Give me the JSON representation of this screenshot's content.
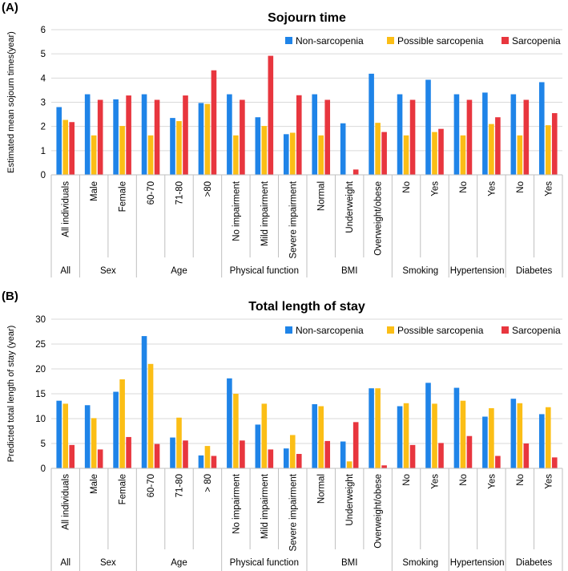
{
  "colors": {
    "non": "#1f84e8",
    "possible": "#fbbe16",
    "sarc": "#e8363e",
    "grid": "#d9d9d9",
    "axis": "#bfbfbf"
  },
  "chart_data": [
    {
      "type": "bar",
      "panel_label": "(A)",
      "title": "Sojourn time",
      "xlabel": "",
      "ylabel": "Estimated mean sojourn times(year)",
      "ylim": [
        0,
        6
      ],
      "yticks": [
        "0",
        "1",
        "2",
        "3",
        "4",
        "5",
        "6"
      ],
      "grid": true,
      "legend": "top-right",
      "categories": [
        "All individuals",
        "Male",
        "Female",
        "60-70",
        "71-80",
        ">80",
        "No impairment",
        "Mild impairment",
        "Severe impairment",
        "Normal",
        "Underweight",
        "Overweight/obese",
        "No",
        "Yes",
        "No",
        "Yes",
        "No",
        "Yes"
      ],
      "groups": [
        {
          "label": "All",
          "count": 1
        },
        {
          "label": "Sex",
          "count": 2
        },
        {
          "label": "Age",
          "count": 3
        },
        {
          "label": "Physical function",
          "count": 3
        },
        {
          "label": "BMI",
          "count": 3
        },
        {
          "label": "Smoking",
          "count": 2
        },
        {
          "label": "Hypertension",
          "count": 2
        },
        {
          "label": "Diabetes",
          "count": 2
        }
      ],
      "series": [
        {
          "name": "Non-sarcopenia",
          "values": [
            2.8,
            3.33,
            3.12,
            3.33,
            2.35,
            2.97,
            3.33,
            2.38,
            1.68,
            3.33,
            2.13,
            4.18,
            3.33,
            3.93,
            3.33,
            3.4,
            3.33,
            3.83
          ]
        },
        {
          "name": "Possible sarcopenia",
          "values": [
            2.27,
            1.63,
            2.02,
            1.63,
            2.22,
            2.93,
            1.63,
            2.02,
            1.74,
            1.63,
            0,
            2.15,
            1.63,
            1.77,
            1.63,
            2.1,
            1.63,
            2.05
          ]
        },
        {
          "name": "Sarcopenia",
          "values": [
            2.18,
            3.1,
            3.28,
            3.1,
            3.28,
            4.32,
            3.1,
            4.92,
            3.29,
            3.1,
            0.22,
            1.77,
            3.1,
            1.9,
            3.1,
            2.38,
            3.1,
            2.55
          ]
        }
      ]
    },
    {
      "type": "bar",
      "panel_label": "(B)",
      "title": "Total length of stay",
      "xlabel": "",
      "ylabel": "Predicted total length of stay (year)",
      "ylim": [
        0,
        30
      ],
      "yticks": [
        "0",
        "5",
        "10",
        "15",
        "20",
        "25",
        "30"
      ],
      "grid": true,
      "legend": "top-right",
      "categories": [
        "All individuals",
        "Male",
        "Female",
        "60-70",
        "71-80",
        "> 80",
        "No impairment",
        "Mild impairment",
        "Severe impairment",
        "Normal",
        "Underweight",
        "Overweight/obese",
        "No",
        "Yes",
        "No",
        "Yes",
        "No",
        "Yes"
      ],
      "groups": [
        {
          "label": "All",
          "count": 1
        },
        {
          "label": "Sex",
          "count": 2
        },
        {
          "label": "Age",
          "count": 3
        },
        {
          "label": "Physical function",
          "count": 3
        },
        {
          "label": "BMI",
          "count": 3
        },
        {
          "label": "Smoking",
          "count": 2
        },
        {
          "label": "Hypertension",
          "count": 2
        },
        {
          "label": "Diabetes",
          "count": 2
        }
      ],
      "series": [
        {
          "name": "Non-sarcopenia",
          "values": [
            13.6,
            12.7,
            15.4,
            26.6,
            6.2,
            2.6,
            18.1,
            8.8,
            4.0,
            12.9,
            5.4,
            16.1,
            12.5,
            17.2,
            16.2,
            10.4,
            14.0,
            10.9
          ]
        },
        {
          "name": "Possible sarcopenia",
          "values": [
            13.0,
            10.1,
            17.9,
            21.0,
            10.2,
            4.5,
            15.0,
            13.0,
            6.7,
            12.5,
            1.4,
            16.1,
            13.1,
            13.0,
            13.6,
            12.1,
            13.1,
            12.3
          ]
        },
        {
          "name": "Sarcopenia",
          "values": [
            4.7,
            3.8,
            6.3,
            4.9,
            5.6,
            2.5,
            5.6,
            3.8,
            2.9,
            5.5,
            9.3,
            0.6,
            4.7,
            5.1,
            6.5,
            2.5,
            5.0,
            2.2
          ]
        }
      ]
    }
  ]
}
